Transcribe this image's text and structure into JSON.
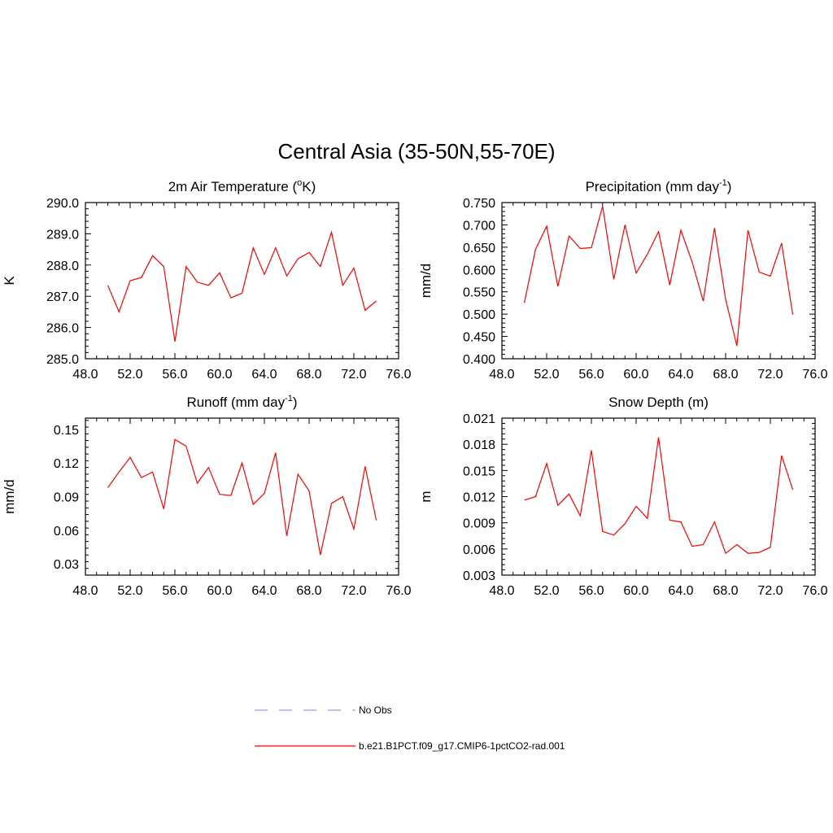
{
  "figure_title": "Central Asia (35-50N,55-70E)",
  "legend": [
    {
      "label": "No Obs",
      "color": "#9999ee",
      "dashed": true
    },
    {
      "label": "b.e21.B1PCT.f09_g17.CMIP6-1pctCO2-rad.001",
      "color": "#ff0000",
      "dashed": false
    }
  ],
  "chart_data": [
    {
      "type": "line",
      "title": "2m Air Temperature (",
      "title_sup": "o",
      "title_tail": "K)",
      "ylabel": "K",
      "xlim": [
        48,
        76
      ],
      "ylim": [
        285.0,
        290.0
      ],
      "xticks": [
        "48.0",
        "52.0",
        "56.0",
        "60.0",
        "64.0",
        "68.0",
        "72.0",
        "76.0"
      ],
      "yticks": [
        "285.0",
        "286.0",
        "287.0",
        "288.0",
        "289.0",
        "290.0"
      ],
      "series": [
        {
          "color": "#ff0000",
          "x": [
            50,
            51,
            52,
            53,
            54,
            55,
            56,
            57,
            58,
            59,
            60,
            61,
            62,
            63,
            64,
            65,
            66,
            67,
            68,
            69,
            70,
            71,
            72,
            73,
            74
          ],
          "y": [
            287.35,
            286.5,
            287.5,
            287.6,
            288.3,
            287.95,
            285.55,
            287.95,
            287.45,
            287.35,
            287.75,
            286.95,
            287.1,
            288.55,
            287.7,
            288.55,
            287.65,
            288.2,
            288.4,
            287.95,
            289.05,
            287.35,
            287.9,
            286.55,
            286.85
          ]
        }
      ]
    },
    {
      "type": "line",
      "title": "Precipitation (mm day",
      "title_sup": "-1",
      "title_tail": ")",
      "ylabel": "mm/d",
      "xlim": [
        48,
        76
      ],
      "ylim": [
        0.4,
        0.75
      ],
      "xticks": [
        "48.0",
        "52.0",
        "56.0",
        "60.0",
        "64.0",
        "68.0",
        "72.0",
        "76.0"
      ],
      "yticks": [
        "0.400",
        "0.450",
        "0.500",
        "0.550",
        "0.600",
        "0.650",
        "0.700",
        "0.750"
      ],
      "series": [
        {
          "color": "#ff0000",
          "x": [
            50,
            51,
            52,
            53,
            54,
            55,
            56,
            57,
            58,
            59,
            60,
            61,
            62,
            63,
            64,
            65,
            66,
            67,
            68,
            69,
            70,
            71,
            72,
            73,
            74
          ],
          "y": [
            0.525,
            0.645,
            0.697,
            0.562,
            0.675,
            0.647,
            0.649,
            0.742,
            0.578,
            0.7,
            0.592,
            0.634,
            0.685,
            0.565,
            0.688,
            0.617,
            0.529,
            0.693,
            0.533,
            0.429,
            0.688,
            0.594,
            0.585,
            0.659,
            0.499
          ]
        }
      ]
    },
    {
      "type": "line",
      "title": "Runoff (mm day",
      "title_sup": "-1",
      "title_tail": ")",
      "ylabel": "mm/d",
      "xlim": [
        48,
        76
      ],
      "ylim": [
        0.02,
        0.16
      ],
      "xticks": [
        "48.0",
        "52.0",
        "56.0",
        "60.0",
        "64.0",
        "68.0",
        "72.0",
        "76.0"
      ],
      "yticks": [
        "0.03",
        "0.06",
        "0.09",
        "0.12",
        "0.15"
      ],
      "ytick_values": [
        0.03,
        0.06,
        0.09,
        0.12,
        0.15
      ],
      "series": [
        {
          "color": "#ff0000",
          "x": [
            50,
            51,
            52,
            53,
            54,
            55,
            56,
            57,
            58,
            59,
            60,
            61,
            62,
            63,
            64,
            65,
            66,
            67,
            68,
            69,
            70,
            71,
            72,
            73,
            74
          ],
          "y": [
            0.098,
            0.112,
            0.125,
            0.107,
            0.112,
            0.079,
            0.141,
            0.135,
            0.102,
            0.116,
            0.092,
            0.091,
            0.12,
            0.083,
            0.093,
            0.129,
            0.055,
            0.11,
            0.095,
            0.038,
            0.084,
            0.09,
            0.061,
            0.117,
            0.069
          ]
        }
      ]
    },
    {
      "type": "line",
      "title": "Snow Depth (m)",
      "title_sup": "",
      "title_tail": "",
      "ylabel": "m",
      "xlim": [
        48,
        76
      ],
      "ylim": [
        0.003,
        0.021
      ],
      "xticks": [
        "48.0",
        "52.0",
        "56.0",
        "60.0",
        "64.0",
        "68.0",
        "72.0",
        "76.0"
      ],
      "yticks": [
        "0.003",
        "0.006",
        "0.009",
        "0.012",
        "0.015",
        "0.018",
        "0.021"
      ],
      "series": [
        {
          "color": "#ff0000",
          "x": [
            50,
            51,
            52,
            53,
            54,
            55,
            56,
            57,
            58,
            59,
            60,
            61,
            62,
            63,
            64,
            65,
            66,
            67,
            68,
            69,
            70,
            71,
            72,
            73,
            74
          ],
          "y": [
            0.0116,
            0.012,
            0.0158,
            0.011,
            0.0123,
            0.0098,
            0.0173,
            0.008,
            0.0076,
            0.0089,
            0.0109,
            0.0095,
            0.0188,
            0.0093,
            0.0091,
            0.0063,
            0.0065,
            0.0091,
            0.0055,
            0.0065,
            0.0055,
            0.0056,
            0.0062,
            0.0167,
            0.0128
          ]
        }
      ]
    }
  ]
}
